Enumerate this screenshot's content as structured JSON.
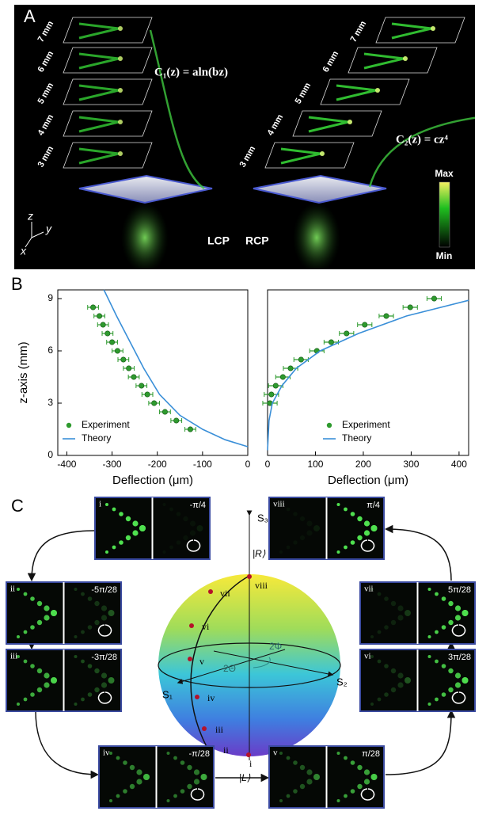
{
  "panel_a": {
    "label": "A",
    "left_layers": [
      "7 mm",
      "6 mm",
      "5 mm",
      "4 mm",
      "3 mm"
    ],
    "right_layers": [
      "7 mm",
      "6 mm",
      "5 mm",
      "4 mm",
      "3 mm"
    ],
    "left_equation": "C₁(z) = aln(bz)",
    "right_equation": "C₂(z) = cz⁴",
    "left_handedness": "LCP",
    "right_handedness": "RCP",
    "colorbar_max": "Max",
    "colorbar_min": "Min",
    "axes": [
      "z",
      "y",
      "x"
    ]
  },
  "panel_b": {
    "label": "B"
  },
  "chart_data": [
    {
      "type": "scatter",
      "xlabel": "Deflection (μm)",
      "ylabel": "z-axis (mm)",
      "xlim": [
        -420,
        0
      ],
      "ylim": [
        0,
        9.5
      ],
      "xticks": [
        -400,
        -300,
        -200,
        -100,
        0
      ],
      "yticks": [
        0,
        3,
        6,
        9
      ],
      "legend": "lower left",
      "series": [
        {
          "name": "Experiment",
          "color": "#2e9a2e",
          "style": "points",
          "x": [
            -127,
            -158,
            -183,
            -207,
            -222,
            -235,
            -252,
            -263,
            -275,
            -288,
            -300,
            -310,
            -320,
            -328,
            -342
          ],
          "values": [
            1.5,
            2,
            2.5,
            3,
            3.5,
            4,
            4.5,
            5,
            5.5,
            6,
            6.5,
            7,
            7.5,
            8,
            8.5
          ],
          "xerr": [
            12,
            12,
            12,
            12,
            12,
            12,
            12,
            12,
            12,
            12,
            12,
            12,
            12,
            12,
            12
          ]
        },
        {
          "name": "Theory",
          "color": "#3a8fd8",
          "style": "line",
          "x": [
            -318,
            -290,
            -260,
            -230,
            -195,
            -150,
            -100,
            -50,
            0
          ],
          "values": [
            9.5,
            8,
            6.5,
            5,
            3.5,
            2.3,
            1.5,
            0.9,
            0.5
          ]
        }
      ]
    },
    {
      "type": "scatter",
      "xlabel": "Deflection (μm)",
      "xlim": [
        0,
        420
      ],
      "ylim": [
        0,
        9.5
      ],
      "xticks": [
        0,
        100,
        200,
        300,
        400
      ],
      "legend": "lower right",
      "series": [
        {
          "name": "Experiment",
          "color": "#2e9a2e",
          "style": "points",
          "x": [
            5,
            8,
            17,
            32,
            48,
            70,
            103,
            133,
            165,
            203,
            248,
            298,
            348
          ],
          "values": [
            3,
            3.5,
            4,
            4.5,
            5,
            5.5,
            6,
            6.5,
            7,
            7.5,
            8,
            8.5,
            9
          ],
          "xerr": [
            15,
            15,
            15,
            15,
            15,
            15,
            15,
            15,
            15,
            15,
            15,
            15,
            15
          ]
        },
        {
          "name": "Theory",
          "color": "#3a8fd8",
          "style": "line",
          "x": [
            0,
            3,
            10,
            30,
            60,
            110,
            190,
            290,
            420
          ],
          "values": [
            0.3,
            2,
            3,
            4,
            5,
            6,
            7,
            8,
            8.9
          ]
        }
      ]
    }
  ],
  "panel_c": {
    "label": "C",
    "tiles": [
      {
        "numeral": "i",
        "phase": "-π/4"
      },
      {
        "numeral": "ii",
        "phase": "-5π/28"
      },
      {
        "numeral": "iii",
        "phase": "-3π/28"
      },
      {
        "numeral": "iv",
        "phase": "-π/28"
      },
      {
        "numeral": "v",
        "phase": "π/28"
      },
      {
        "numeral": "vi",
        "phase": "3π/28"
      },
      {
        "numeral": "vii",
        "phase": "5π/28"
      },
      {
        "numeral": "viii",
        "phase": "π/4"
      }
    ],
    "sphere": {
      "s1": "S₁",
      "s2": "S₂",
      "s3": "S₃",
      "north": "|R⟩",
      "south": "|L⟩",
      "azimuth": "2Φ",
      "polar": "2Θ",
      "points": [
        "i",
        "ii",
        "iii",
        "iv",
        "v",
        "vi",
        "vii",
        "viii"
      ]
    }
  }
}
